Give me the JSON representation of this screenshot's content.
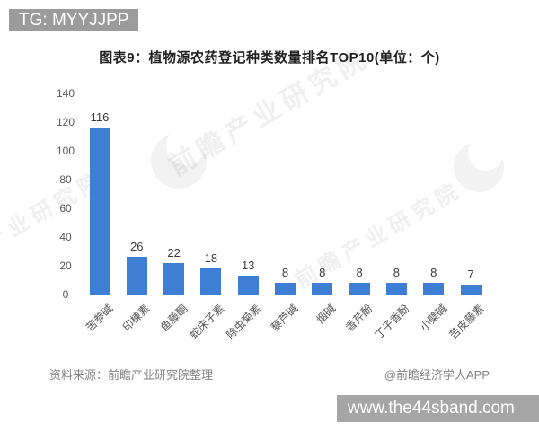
{
  "overlays": {
    "top_badge": "TG: MYYJJPP",
    "bottom_badge": "www.the44sband.com"
  },
  "title": "图表9：植物源农药登记种类数量排名TOP10(单位：个)",
  "watermark": {
    "text": "前瞻产业研究院",
    "logo": "qianzhan-logo"
  },
  "footer": {
    "source": "资料来源：前瞻产业研究院整理",
    "credit": "@前瞻经济学人APP"
  },
  "colors": {
    "bar": "#3e7fd5",
    "badge_bg": "#9b9b9b",
    "axis_text": "#595959",
    "value_text": "#3a3a3a",
    "baseline": "#d8d8d8"
  },
  "chart_data": {
    "type": "bar",
    "title": "图表9：植物源农药登记种类数量排名TOP10(单位：个)",
    "unit": "个",
    "categories": [
      "苦参碱",
      "印楝素",
      "鱼藤酮",
      "蛇床子素",
      "除虫菊素",
      "藜芦碱",
      "烟碱",
      "香芹酚",
      "丁子香酚",
      "小檗碱",
      "苦皮藤素"
    ],
    "values": [
      116,
      26,
      22,
      18,
      13,
      8,
      8,
      8,
      8,
      8,
      7
    ],
    "ylim": [
      0,
      140
    ],
    "yticks": [
      0,
      20,
      40,
      60,
      80,
      100,
      120,
      140
    ],
    "grid": false,
    "legend": false,
    "bar_labels_shown": true
  }
}
